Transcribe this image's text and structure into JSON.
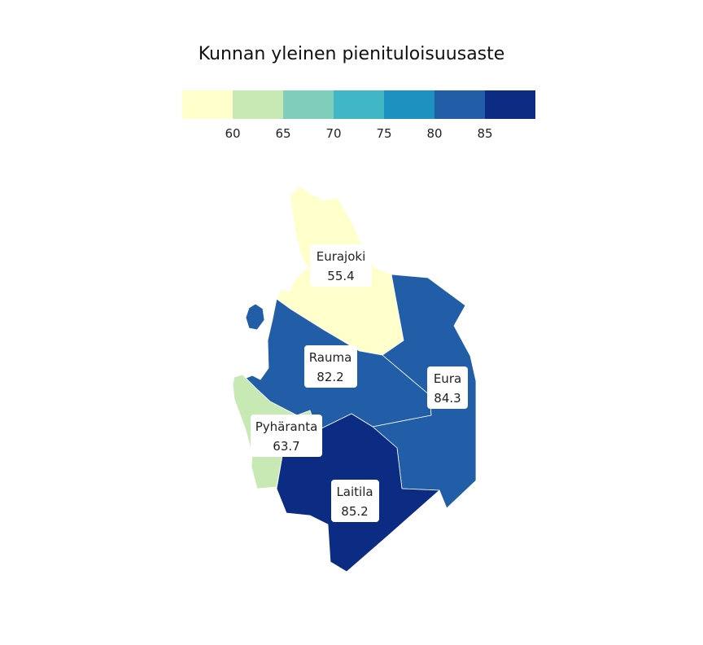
{
  "title": "Kunnan yleinen pienituloisuusaste",
  "legend": {
    "colors": [
      "#ffffcc",
      "#c7e9b4",
      "#7fcdbb",
      "#41b6c4",
      "#1d91c0",
      "#225ea8",
      "#0c2c84"
    ],
    "ticks": [
      "60",
      "65",
      "70",
      "75",
      "80",
      "85"
    ]
  },
  "municipalities": [
    {
      "id": "eurajoki",
      "name": "Eurajoki",
      "value": "55.4",
      "color": "#ffffcc"
    },
    {
      "id": "rauma",
      "name": "Rauma",
      "value": "82.2",
      "color": "#225ea8"
    },
    {
      "id": "eura",
      "name": "Eura",
      "value": "84.3",
      "color": "#225ea8"
    },
    {
      "id": "pyharanta",
      "name": "Pyhäranta",
      "value": "63.7",
      "color": "#c7e9b4"
    },
    {
      "id": "laitila",
      "name": "Laitila",
      "value": "85.2",
      "color": "#0c2c84"
    }
  ]
}
